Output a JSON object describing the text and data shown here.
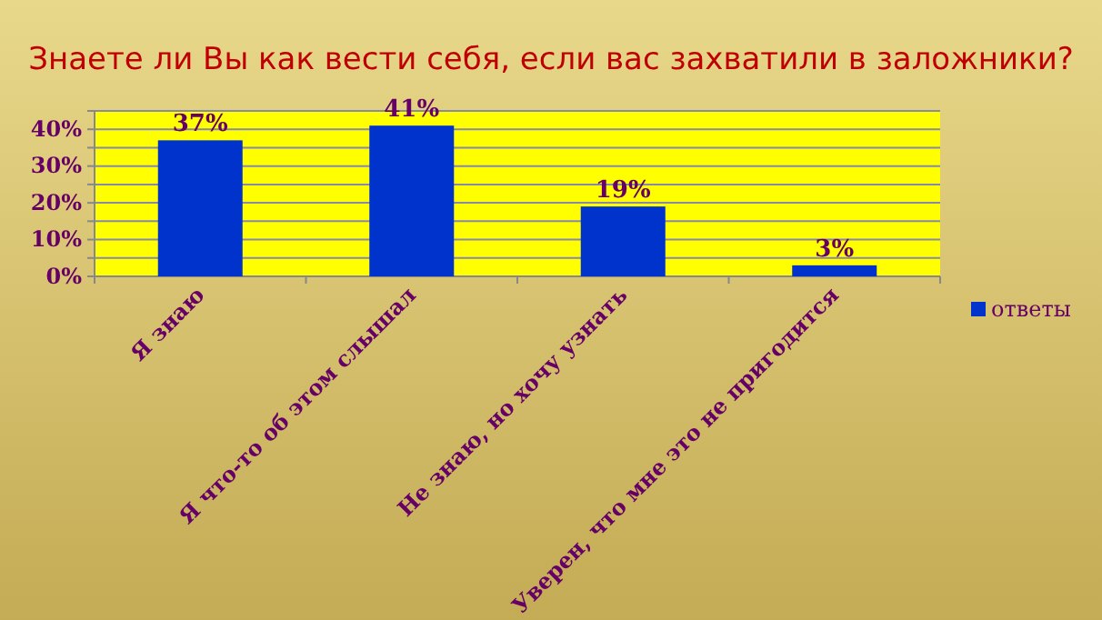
{
  "chart_data": {
    "type": "bar",
    "title": "Знаете ли Вы как вести себя, если вас захватили в заложники?",
    "categories": [
      "Я знаю",
      "Я что-то об этом слышал",
      "Не знаю, но хочу узнать",
      "Уверен, что мне это не пригодится"
    ],
    "series": [
      {
        "name": "ответы",
        "color": "#0033cc",
        "values": [
          37,
          41,
          19,
          3
        ],
        "value_labels": [
          "37%",
          "41%",
          "19%",
          "3%"
        ]
      }
    ],
    "ylim": [
      0,
      45
    ],
    "yticks": [
      {
        "value": 0,
        "label": "0%"
      },
      {
        "value": 5,
        "label": null
      },
      {
        "value": 10,
        "label": "10%"
      },
      {
        "value": 15,
        "label": null
      },
      {
        "value": 20,
        "label": "20%"
      },
      {
        "value": 25,
        "label": null
      },
      {
        "value": 30,
        "label": "30%"
      },
      {
        "value": 35,
        "label": null
      },
      {
        "value": 40,
        "label": "40%"
      },
      {
        "value": 45,
        "label": null
      }
    ],
    "grid": true,
    "legend": "right"
  }
}
